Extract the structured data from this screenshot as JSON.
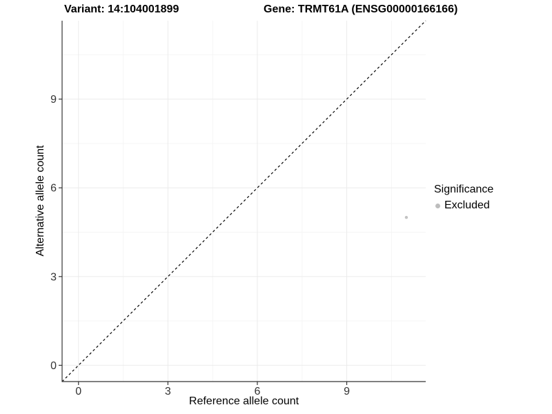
{
  "chart_data": {
    "type": "scatter",
    "title_left": "Variant: 14:104001899",
    "title_right": "Gene: TRMT61A (ENSG00000166166)",
    "xlabel": "Reference allele count",
    "ylabel": "Alternative allele count",
    "xlim": [
      -0.55,
      11.65
    ],
    "ylim": [
      -0.55,
      11.65
    ],
    "x_ticks": [
      0,
      3,
      6,
      9
    ],
    "y_ticks": [
      0,
      3,
      6,
      9
    ],
    "x_minor_ticks": [
      1.5,
      4.5,
      7.5,
      10.5
    ],
    "y_minor_ticks": [
      1.5,
      4.5,
      7.5,
      10.5
    ],
    "grid": "major+minor",
    "series": [
      {
        "name": "Excluded",
        "color": "#c3c3c3",
        "points": [
          {
            "x": 11,
            "y": 5
          }
        ]
      }
    ],
    "reference_line": {
      "equation": "y = x",
      "style": "dashed",
      "color": "#000000"
    },
    "legend": {
      "title": "Significance",
      "position": "right",
      "items": [
        {
          "label": "Excluded",
          "color": "#bdbdbd"
        }
      ]
    },
    "colors": {
      "background": "#ffffff",
      "grid_major": "#ebebeb",
      "grid_minor": "#f5f5f5",
      "axis_line": "#333333",
      "tick_label": "#333333"
    }
  }
}
